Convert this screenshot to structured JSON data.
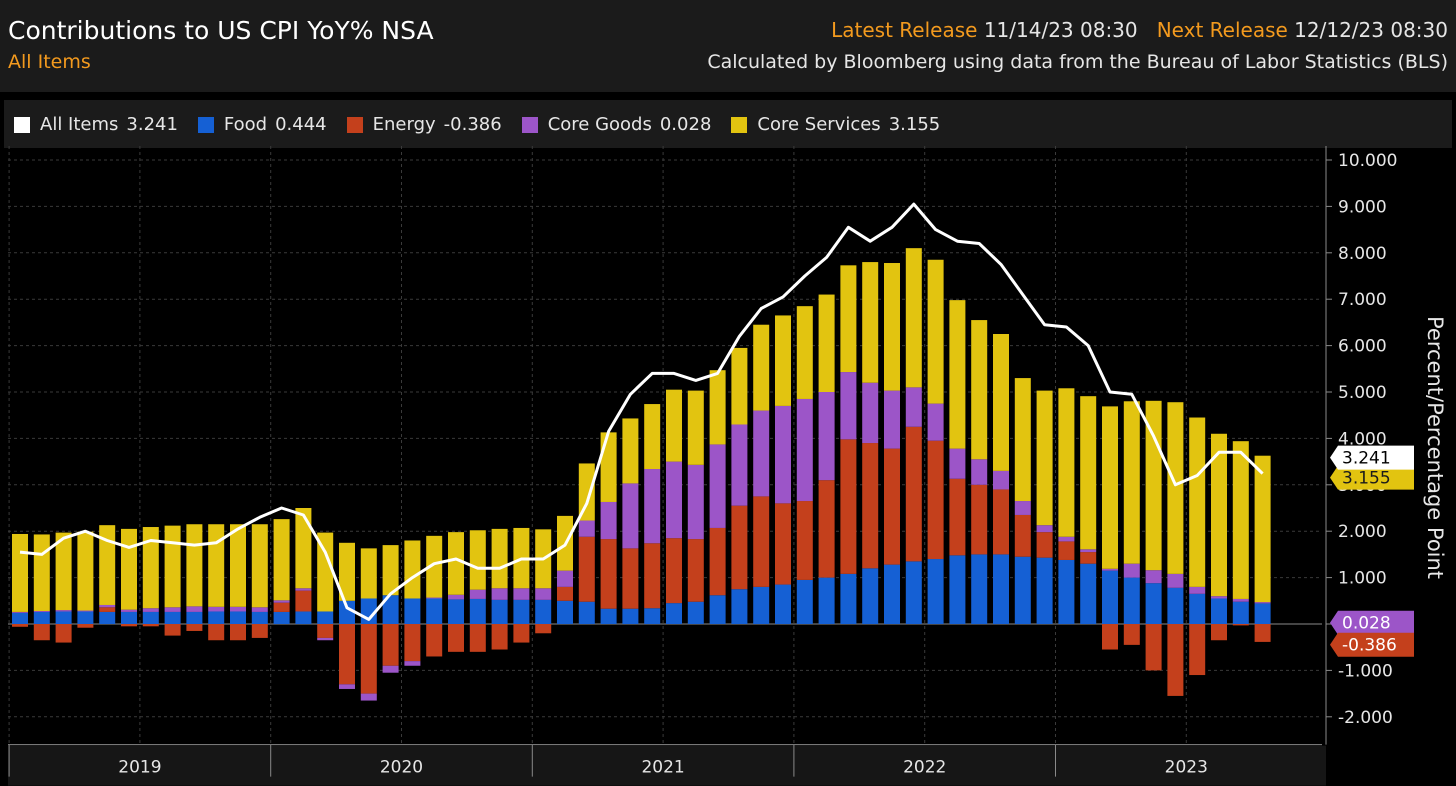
{
  "header": {
    "title": "Contributions to US CPI YoY% NSA",
    "subtitle": "All Items",
    "latest_label": "Latest Release",
    "latest_value": "11/14/23 08:30",
    "next_label": "Next Release",
    "next_value": "12/12/23 08:30",
    "source": "Calculated by Bloomberg using data from the Bureau of Labor Statistics (BLS)"
  },
  "legend": [
    {
      "name": "All Items",
      "value": "3.241",
      "color": "#ffffff"
    },
    {
      "name": "Food",
      "value": "0.444",
      "color": "#1560d4"
    },
    {
      "name": "Energy",
      "value": "-0.386",
      "color": "#c4401c"
    },
    {
      "name": "Core Goods",
      "value": "0.028",
      "color": "#9c55c8"
    },
    {
      "name": "Core Services",
      "value": "3.155",
      "color": "#e2c410"
    }
  ],
  "chart_data": {
    "type": "bar",
    "stacked": true,
    "ylabel": "Percent/Percentage Point",
    "ylim": [
      -2.5,
      10.3
    ],
    "yticks": [
      "10.000",
      "9.000",
      "8.000",
      "7.000",
      "6.000",
      "5.000",
      "4.000",
      "3.000",
      "2.000",
      "1.000",
      "0.000",
      "-1.000",
      "-2.000"
    ],
    "ytick_values": [
      10,
      9,
      8,
      7,
      6,
      5,
      4,
      3,
      2,
      1,
      0,
      -1,
      -2
    ],
    "year_labels": [
      "2019",
      "2020",
      "2021",
      "2022",
      "2023"
    ],
    "year_start_index": [
      0,
      12,
      24,
      36,
      48
    ],
    "grid": true,
    "categories": [
      "Jan 2019",
      "Feb 2019",
      "Mar 2019",
      "Apr 2019",
      "May 2019",
      "Jun 2019",
      "Jul 2019",
      "Aug 2019",
      "Sep 2019",
      "Oct 2019",
      "Nov 2019",
      "Dec 2019",
      "Jan 2020",
      "Feb 2020",
      "Mar 2020",
      "Apr 2020",
      "May 2020",
      "Jun 2020",
      "Jul 2020",
      "Aug 2020",
      "Sep 2020",
      "Oct 2020",
      "Nov 2020",
      "Dec 2020",
      "Jan 2021",
      "Feb 2021",
      "Mar 2021",
      "Apr 2021",
      "May 2021",
      "Jun 2021",
      "Jul 2021",
      "Aug 2021",
      "Sep 2021",
      "Oct 2021",
      "Nov 2021",
      "Dec 2021",
      "Jan 2022",
      "Feb 2022",
      "Mar 2022",
      "Apr 2022",
      "May 2022",
      "Jun 2022",
      "Jul 2022",
      "Aug 2022",
      "Sep 2022",
      "Oct 2022",
      "Nov 2022",
      "Dec 2022",
      "Jan 2023",
      "Feb 2023",
      "Mar 2023",
      "Apr 2023",
      "May 2023",
      "Jun 2023",
      "Jul 2023",
      "Aug 2023",
      "Sep 2023",
      "Oct 2023"
    ],
    "series": [
      {
        "name": "Food",
        "color": "#1560d4",
        "values": [
          0.24,
          0.26,
          0.27,
          0.27,
          0.26,
          0.26,
          0.26,
          0.26,
          0.26,
          0.27,
          0.27,
          0.26,
          0.26,
          0.27,
          0.27,
          0.5,
          0.55,
          0.62,
          0.55,
          0.55,
          0.53,
          0.54,
          0.52,
          0.52,
          0.52,
          0.5,
          0.48,
          0.33,
          0.33,
          0.34,
          0.45,
          0.48,
          0.62,
          0.75,
          0.8,
          0.85,
          0.95,
          1.0,
          1.08,
          1.2,
          1.28,
          1.35,
          1.4,
          1.48,
          1.5,
          1.5,
          1.45,
          1.43,
          1.38,
          1.3,
          1.15,
          1.0,
          0.88,
          0.78,
          0.65,
          0.55,
          0.48,
          0.444
        ]
      },
      {
        "name": "Energy",
        "color": "#c4401c",
        "values": [
          -0.06,
          -0.35,
          -0.4,
          -0.08,
          0.1,
          -0.05,
          -0.05,
          -0.25,
          -0.15,
          -0.35,
          -0.35,
          -0.3,
          0.2,
          0.45,
          -0.3,
          -1.3,
          -1.5,
          -0.9,
          -0.8,
          -0.7,
          -0.6,
          -0.6,
          -0.55,
          -0.4,
          -0.2,
          0.3,
          1.4,
          1.5,
          1.3,
          1.4,
          1.4,
          1.35,
          1.45,
          1.8,
          1.95,
          1.75,
          1.7,
          2.1,
          2.9,
          2.7,
          2.5,
          2.9,
          2.55,
          1.65,
          1.5,
          1.4,
          0.9,
          0.55,
          0.4,
          0.25,
          -0.55,
          -0.45,
          -1.0,
          -1.55,
          -1.1,
          -0.35,
          -0.03,
          -0.386
        ]
      },
      {
        "name": "Core Goods",
        "color": "#9c55c8",
        "values": [
          0.02,
          0.02,
          0.03,
          0.02,
          0.05,
          0.05,
          0.08,
          0.1,
          0.12,
          0.1,
          0.1,
          0.1,
          0.05,
          0.05,
          -0.05,
          -0.1,
          -0.15,
          -0.15,
          -0.1,
          0.02,
          0.1,
          0.2,
          0.25,
          0.25,
          0.25,
          0.35,
          0.35,
          0.8,
          1.4,
          1.6,
          1.65,
          1.6,
          1.8,
          1.75,
          1.85,
          2.1,
          2.2,
          1.9,
          1.45,
          1.3,
          1.25,
          0.85,
          0.8,
          0.65,
          0.55,
          0.4,
          0.3,
          0.15,
          0.1,
          0.06,
          0.04,
          0.3,
          0.28,
          0.3,
          0.15,
          0.05,
          0.06,
          0.028
        ]
      },
      {
        "name": "Core Services",
        "color": "#e2c410",
        "values": [
          1.68,
          1.65,
          1.67,
          1.7,
          1.72,
          1.74,
          1.75,
          1.76,
          1.77,
          1.78,
          1.78,
          1.79,
          1.75,
          1.73,
          1.7,
          1.25,
          1.08,
          1.08,
          1.25,
          1.33,
          1.35,
          1.28,
          1.28,
          1.3,
          1.27,
          1.18,
          1.23,
          1.5,
          1.4,
          1.4,
          1.55,
          1.6,
          1.6,
          1.65,
          1.85,
          1.95,
          2.0,
          2.1,
          2.3,
          2.6,
          2.75,
          3.0,
          3.1,
          3.2,
          3.0,
          2.95,
          2.65,
          2.9,
          3.2,
          3.3,
          3.5,
          3.5,
          3.65,
          3.7,
          3.65,
          3.5,
          3.4,
          3.155
        ]
      },
      {
        "name": "All Items",
        "color": "#ffffff",
        "type": "line",
        "values": [
          1.55,
          1.5,
          1.85,
          2.0,
          1.8,
          1.65,
          1.8,
          1.75,
          1.7,
          1.75,
          2.05,
          2.3,
          2.5,
          2.35,
          1.55,
          0.35,
          0.1,
          0.65,
          1.0,
          1.3,
          1.4,
          1.2,
          1.2,
          1.4,
          1.4,
          1.7,
          2.6,
          4.15,
          4.95,
          5.4,
          5.4,
          5.25,
          5.4,
          6.2,
          6.8,
          7.05,
          7.5,
          7.9,
          8.55,
          8.25,
          8.55,
          9.05,
          8.5,
          8.25,
          8.2,
          7.75,
          7.1,
          6.45,
          6.4,
          6.0,
          5.0,
          4.95,
          4.05,
          3.0,
          3.2,
          3.7,
          3.7,
          3.241
        ]
      }
    ],
    "end_labels": [
      {
        "text": "3.155",
        "value": 3.155,
        "color": "#e2c410",
        "textColor": "#1b1b1b"
      },
      {
        "text": "3.241",
        "value": 3.241,
        "color": "#ffffff",
        "textColor": "#000000"
      },
      {
        "text": "0.028",
        "value": 0.028,
        "color": "#9c55c8",
        "textColor": "#ffffff"
      },
      {
        "text": "-0.386",
        "value": -0.386,
        "color": "#c4401c",
        "textColor": "#ffffff"
      }
    ]
  }
}
